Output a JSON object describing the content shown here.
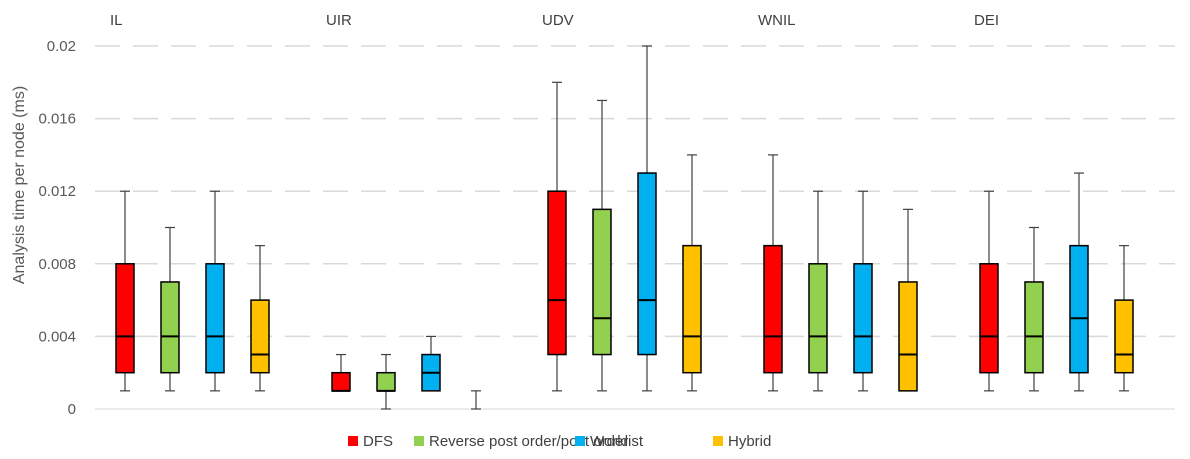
{
  "chart_data": {
    "type": "boxplot",
    "title": "",
    "xlabel": "",
    "ylabel": "Analysis time per node (ms)",
    "ylim": [
      0,
      0.02
    ],
    "yticks": [
      {
        "value": 0,
        "label": "0"
      },
      {
        "value": 0.004,
        "label": "0.004"
      },
      {
        "value": 0.008,
        "label": "0.008"
      },
      {
        "value": 0.012,
        "label": "0.012"
      },
      {
        "value": 0.016,
        "label": "0.016"
      },
      {
        "value": 0.02,
        "label": "0.02"
      }
    ],
    "grid": true,
    "legend_position": "bottom",
    "categories": [
      "IL",
      "UIR",
      "UDV",
      "WNIL",
      "DEI"
    ],
    "series": [
      {
        "name": "DFS",
        "color": "#ff0000",
        "boxes": [
          {
            "min": 0.001,
            "q1": 0.002,
            "median": 0.004,
            "q3": 0.008,
            "max": 0.012
          },
          {
            "min": 0.001,
            "q1": 0.001,
            "median": 0.001,
            "q3": 0.002,
            "max": 0.003
          },
          {
            "min": 0.001,
            "q1": 0.003,
            "median": 0.006,
            "q3": 0.012,
            "max": 0.018
          },
          {
            "min": 0.001,
            "q1": 0.002,
            "median": 0.004,
            "q3": 0.009,
            "max": 0.014
          },
          {
            "min": 0.001,
            "q1": 0.002,
            "median": 0.004,
            "q3": 0.008,
            "max": 0.012
          }
        ]
      },
      {
        "name": "Reverse post order/post order",
        "color": "#92d050",
        "boxes": [
          {
            "min": 0.001,
            "q1": 0.002,
            "median": 0.004,
            "q3": 0.007,
            "max": 0.01
          },
          {
            "min": 0.0,
            "q1": 0.001,
            "median": 0.001,
            "q3": 0.002,
            "max": 0.003
          },
          {
            "min": 0.001,
            "q1": 0.003,
            "median": 0.005,
            "q3": 0.011,
            "max": 0.017
          },
          {
            "min": 0.001,
            "q1": 0.002,
            "median": 0.004,
            "q3": 0.008,
            "max": 0.012
          },
          {
            "min": 0.001,
            "q1": 0.002,
            "median": 0.004,
            "q3": 0.007,
            "max": 0.01
          }
        ]
      },
      {
        "name": "Worklist",
        "color": "#00b0f0",
        "boxes": [
          {
            "min": 0.001,
            "q1": 0.002,
            "median": 0.004,
            "q3": 0.008,
            "max": 0.012
          },
          {
            "min": 0.001,
            "q1": 0.001,
            "median": 0.002,
            "q3": 0.003,
            "max": 0.004
          },
          {
            "min": 0.001,
            "q1": 0.003,
            "median": 0.006,
            "q3": 0.013,
            "max": 0.02
          },
          {
            "min": 0.001,
            "q1": 0.002,
            "median": 0.004,
            "q3": 0.008,
            "max": 0.012
          },
          {
            "min": 0.001,
            "q1": 0.002,
            "median": 0.005,
            "q3": 0.009,
            "max": 0.013
          }
        ]
      },
      {
        "name": "Hybrid",
        "color": "#ffc000",
        "boxes": [
          {
            "min": 0.001,
            "q1": 0.002,
            "median": 0.003,
            "q3": 0.006,
            "max": 0.009
          },
          {
            "min": 0.0,
            "q1": 0.0,
            "median": 0.0,
            "q3": 0.0,
            "max": 0.001
          },
          {
            "min": 0.001,
            "q1": 0.002,
            "median": 0.004,
            "q3": 0.009,
            "max": 0.014
          },
          {
            "min": 0.001,
            "q1": 0.001,
            "median": 0.003,
            "q3": 0.007,
            "max": 0.011
          },
          {
            "min": 0.001,
            "q1": 0.002,
            "median": 0.003,
            "q3": 0.006,
            "max": 0.009
          }
        ]
      }
    ]
  }
}
